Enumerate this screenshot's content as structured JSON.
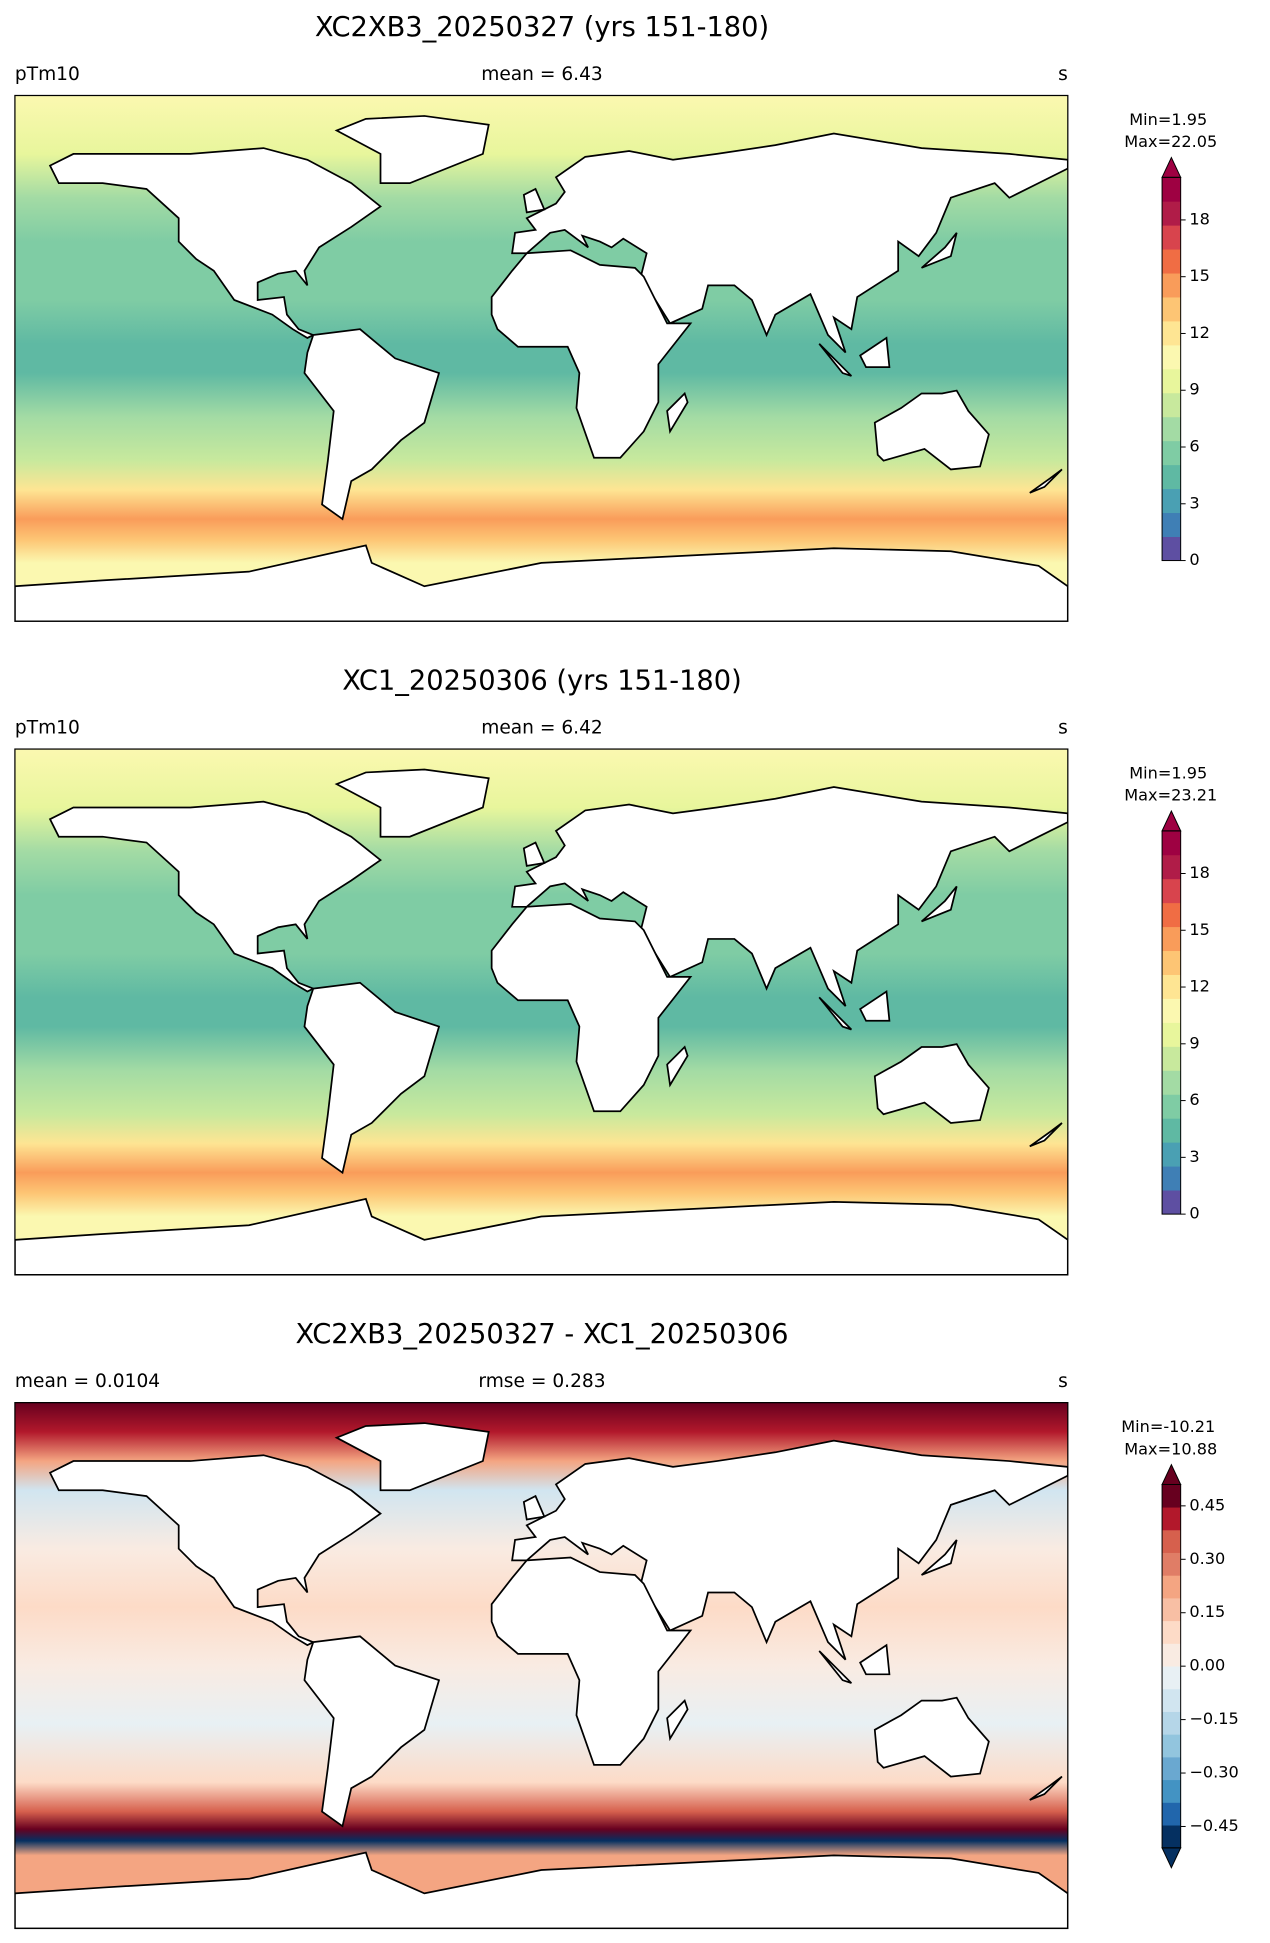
{
  "chart_data": [
    {
      "type": "map",
      "title": "XC2XB3_20250327 (yrs 151-180)",
      "left_label": "pTm10",
      "center_label": "mean = 6.43",
      "right_label": "s",
      "min_label": "Min=1.95",
      "max_label": "Max=22.05",
      "colorbar": {
        "clim": [
          0,
          20.25
        ],
        "ticks": [
          0,
          3,
          6,
          9,
          12,
          15,
          18
        ],
        "extend": "max",
        "colors": [
          "#5e4fa2",
          "#3f7fb5",
          "#4aa0b3",
          "#5fb9a3",
          "#7fcca4",
          "#a3dba4",
          "#c8e99d",
          "#e8f69c",
          "#fbf8b0",
          "#fee593",
          "#fdc574",
          "#f99c5a",
          "#f06d44",
          "#d8444d",
          "#b01c48",
          "#9e0142"
        ]
      }
    },
    {
      "type": "map",
      "title": "XC1_20250306 (yrs 151-180)",
      "left_label": "pTm10",
      "center_label": "mean = 6.42",
      "right_label": "s",
      "min_label": "Min=1.95",
      "max_label": "Max=23.21",
      "colorbar": {
        "clim": [
          0,
          20.25
        ],
        "ticks": [
          0,
          3,
          6,
          9,
          12,
          15,
          18
        ],
        "extend": "max",
        "colors": [
          "#5e4fa2",
          "#3f7fb5",
          "#4aa0b3",
          "#5fb9a3",
          "#7fcca4",
          "#a3dba4",
          "#c8e99d",
          "#e8f69c",
          "#fbf8b0",
          "#fee593",
          "#fdc574",
          "#f99c5a",
          "#f06d44",
          "#d8444d",
          "#b01c48",
          "#9e0142"
        ]
      }
    },
    {
      "type": "map",
      "title": "XC2XB3_20250327 - XC1_20250306",
      "left_label": "mean = 0.0104",
      "center_label": "rmse = 0.283",
      "right_label": "s",
      "min_label": "Min=-10.21",
      "max_label": "Max=10.88",
      "colorbar": {
        "clim": [
          -0.51,
          0.51
        ],
        "ticks": [
          {
            "value": -0.45,
            "label": "−0.45"
          },
          {
            "value": -0.3,
            "label": "−0.30"
          },
          {
            "value": -0.15,
            "label": "−0.15"
          },
          {
            "value": 0,
            "label": "0.00"
          },
          0.15,
          {
            "value": 0.3,
            "label": "0.30"
          },
          0.45
        ],
        "extend": "both",
        "colors": [
          "#053061",
          "#2166ac",
          "#4393c3",
          "#6aa8d0",
          "#92c5de",
          "#b5d6e8",
          "#d1e5f0",
          "#e8f0f4",
          "#f9ebe2",
          "#fddbc7",
          "#f8bfa4",
          "#f4a582",
          "#e07d66",
          "#d6604d",
          "#b2182b",
          "#67001f"
        ]
      }
    }
  ]
}
